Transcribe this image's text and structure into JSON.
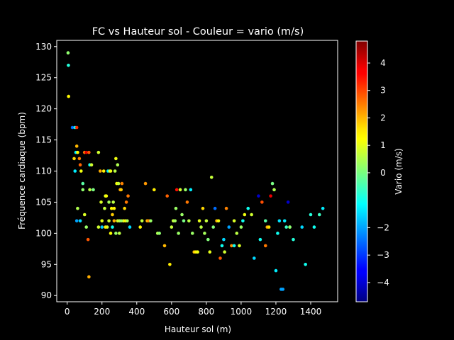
{
  "chart_data": {
    "type": "scatter",
    "title": "FC vs Hauteur sol - Couleur = vario (m/s)",
    "xlabel": "Hauteur sol (m)",
    "ylabel": "Fréquence cardiaque (bpm)",
    "xlim": [
      -60,
      1555
    ],
    "ylim": [
      89,
      131
    ],
    "xticks": [
      0,
      200,
      400,
      600,
      800,
      1000,
      1200,
      1400
    ],
    "yticks": [
      90,
      95,
      100,
      105,
      110,
      115,
      120,
      125,
      130
    ],
    "colorbar": {
      "label": "Vario (m/s)",
      "range": [
        -4.7,
        4.8
      ],
      "ticks": [
        -4,
        -3,
        -2,
        0,
        1,
        2,
        3,
        4
      ],
      "colormap": "jet"
    },
    "grid": false,
    "points": [
      [
        5,
        129,
        0.2
      ],
      [
        7,
        127,
        -0.8
      ],
      [
        8,
        122,
        1.3
      ],
      [
        30,
        117,
        -2.5
      ],
      [
        45,
        117,
        -1.0
      ],
      [
        55,
        117,
        3.2
      ],
      [
        40,
        112,
        1.6
      ],
      [
        50,
        113,
        -1.3
      ],
      [
        55,
        114,
        1.9
      ],
      [
        60,
        113,
        1.3
      ],
      [
        45,
        110,
        -1.3
      ],
      [
        70,
        112,
        2.4
      ],
      [
        75,
        111,
        2.7
      ],
      [
        80,
        110,
        1.1
      ],
      [
        90,
        108,
        -0.3
      ],
      [
        100,
        113,
        2.5
      ],
      [
        110,
        113,
        3.8
      ],
      [
        125,
        113,
        2.8
      ],
      [
        60,
        104,
        0.5
      ],
      [
        55,
        102,
        -2.0
      ],
      [
        75,
        102,
        -1.5
      ],
      [
        90,
        107,
        0.2
      ],
      [
        100,
        103,
        0.9
      ],
      [
        110,
        101,
        0.3
      ],
      [
        120,
        99,
        2.8
      ],
      [
        125,
        93,
        2.0
      ],
      [
        130,
        111,
        -1.0
      ],
      [
        140,
        111,
        0.8
      ],
      [
        150,
        107,
        0.0
      ],
      [
        130,
        107,
        0.6
      ],
      [
        180,
        113,
        0.8
      ],
      [
        190,
        110,
        2.0
      ],
      [
        195,
        105,
        0.9
      ],
      [
        200,
        102,
        1.0
      ],
      [
        210,
        110,
        1.4
      ],
      [
        215,
        104,
        0.7
      ],
      [
        220,
        106,
        0.9
      ],
      [
        225,
        106,
        1.2
      ],
      [
        230,
        101,
        0.8
      ],
      [
        235,
        110,
        -1.3
      ],
      [
        240,
        105,
        0.4
      ],
      [
        245,
        110,
        0.9
      ],
      [
        250,
        110,
        1.1
      ],
      [
        255,
        104,
        1.3
      ],
      [
        260,
        103,
        1.7
      ],
      [
        265,
        105,
        0.6
      ],
      [
        270,
        104,
        1.3
      ],
      [
        275,
        110,
        0.6
      ],
      [
        280,
        112,
        1.1
      ],
      [
        285,
        108,
        1.2
      ],
      [
        290,
        111,
        0.5
      ],
      [
        295,
        108,
        0.7
      ],
      [
        300,
        100,
        0.6
      ],
      [
        305,
        107,
        2.1
      ],
      [
        310,
        107,
        1.7
      ],
      [
        315,
        108,
        2.4
      ],
      [
        320,
        102,
        2.5
      ],
      [
        325,
        102,
        0.9
      ],
      [
        330,
        104,
        1.6
      ],
      [
        335,
        102,
        1.3
      ],
      [
        340,
        105,
        2.5
      ],
      [
        345,
        102,
        0.5
      ],
      [
        350,
        106,
        2.5
      ],
      [
        360,
        101,
        -1.5
      ],
      [
        180,
        101,
        0.8
      ],
      [
        200,
        101,
        -1.6
      ],
      [
        220,
        101,
        1.4
      ],
      [
        240,
        102,
        0.8
      ],
      [
        250,
        100,
        1.2
      ],
      [
        260,
        101,
        -1.0
      ],
      [
        270,
        102,
        2.0
      ],
      [
        280,
        100,
        0.3
      ],
      [
        290,
        102,
        0.9
      ],
      [
        300,
        102,
        0.6
      ],
      [
        310,
        102,
        0.3
      ],
      [
        420,
        101,
        1.3
      ],
      [
        430,
        102,
        0.7
      ],
      [
        450,
        108,
        2.2
      ],
      [
        460,
        102,
        1.9
      ],
      [
        470,
        102,
        2.4
      ],
      [
        480,
        102,
        0.3
      ],
      [
        500,
        107,
        1.4
      ],
      [
        520,
        100,
        0.5
      ],
      [
        530,
        100,
        0.2
      ],
      [
        560,
        98,
        1.9
      ],
      [
        575,
        106,
        2.7
      ],
      [
        590,
        95,
        1.4
      ],
      [
        600,
        101,
        0.7
      ],
      [
        610,
        102,
        0.7
      ],
      [
        620,
        102,
        0.4
      ],
      [
        625,
        104,
        0.3
      ],
      [
        630,
        107,
        3.5
      ],
      [
        640,
        100,
        0.3
      ],
      [
        650,
        107,
        0.8
      ],
      [
        660,
        103,
        0.3
      ],
      [
        670,
        102,
        0.0
      ],
      [
        680,
        107,
        0.3
      ],
      [
        690,
        105,
        2.5
      ],
      [
        700,
        102,
        0.6
      ],
      [
        710,
        107,
        -1.3
      ],
      [
        720,
        100,
        0.3
      ],
      [
        730,
        97,
        1.8
      ],
      [
        740,
        97,
        1.3
      ],
      [
        750,
        97,
        1.1
      ],
      [
        760,
        102,
        1.0
      ],
      [
        770,
        101,
        0.6
      ],
      [
        780,
        104,
        1.6
      ],
      [
        790,
        100,
        0.4
      ],
      [
        800,
        102,
        0.7
      ],
      [
        810,
        99,
        0.1
      ],
      [
        820,
        97,
        1.0
      ],
      [
        830,
        109,
        0.7
      ],
      [
        840,
        101,
        0.1
      ],
      [
        850,
        104,
        -2.5
      ],
      [
        860,
        102,
        1.9
      ],
      [
        870,
        102,
        1.1
      ],
      [
        880,
        96,
        2.8
      ],
      [
        890,
        98,
        -1.0
      ],
      [
        900,
        99,
        -1.5
      ],
      [
        905,
        97,
        0.8
      ],
      [
        915,
        104,
        2.4
      ],
      [
        930,
        101,
        -2.0
      ],
      [
        945,
        98,
        2.3
      ],
      [
        960,
        102,
        0.9
      ],
      [
        975,
        100,
        0.6
      ],
      [
        990,
        98,
        0.9
      ],
      [
        1000,
        101,
        0.3
      ],
      [
        1010,
        102,
        -1.0
      ],
      [
        1020,
        103,
        1.1
      ],
      [
        1040,
        104,
        -1.0
      ],
      [
        1060,
        103,
        0.8
      ],
      [
        1075,
        96,
        -1.5
      ],
      [
        1100,
        106,
        -4.0
      ],
      [
        1110,
        99,
        -1.0
      ],
      [
        1120,
        105,
        2.9
      ],
      [
        1140,
        98,
        2.5
      ],
      [
        1150,
        101,
        2.0
      ],
      [
        1160,
        101,
        1.5
      ],
      [
        1170,
        106,
        3.8
      ],
      [
        1180,
        108,
        0.0
      ],
      [
        1190,
        107,
        0.5
      ],
      [
        1200,
        94,
        -1.3
      ],
      [
        1210,
        100,
        -1.0
      ],
      [
        1220,
        102,
        -1.4
      ],
      [
        1230,
        91,
        -2.0
      ],
      [
        1240,
        91,
        -2.0
      ],
      [
        1250,
        102,
        -1.3
      ],
      [
        1260,
        101,
        -0.6
      ],
      [
        1270,
        105,
        -4.0
      ],
      [
        1280,
        101,
        -0.2
      ],
      [
        1300,
        99,
        -0.8
      ],
      [
        1350,
        101,
        -1.5
      ],
      [
        1370,
        95,
        -1.0
      ],
      [
        1400,
        103,
        -0.8
      ],
      [
        1420,
        101,
        -1.0
      ],
      [
        1450,
        103,
        -0.6
      ],
      [
        1470,
        104,
        -1.3
      ],
      [
        1280,
        101,
        0.2
      ],
      [
        1140,
        102,
        -0.3
      ],
      [
        960,
        98,
        -1.0
      ]
    ]
  }
}
